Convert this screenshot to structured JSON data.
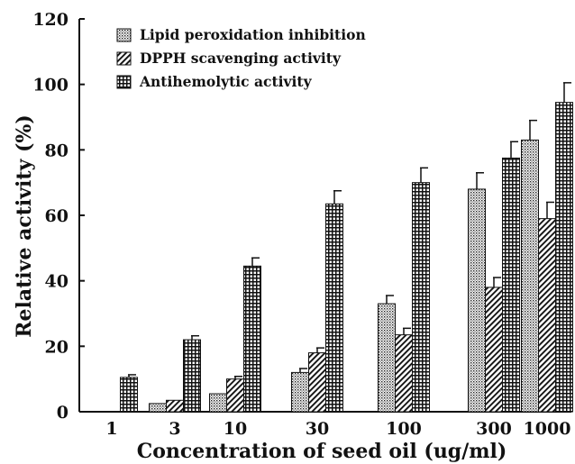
{
  "chart_data": {
    "type": "bar",
    "title": "",
    "xlabel": "Concentration of seed oil (ug/ml)",
    "ylabel": "Relative activity (%)",
    "categories": [
      "1",
      "3",
      "10",
      "30",
      "100",
      "300",
      "1000"
    ],
    "ylim": [
      0,
      120
    ],
    "yticks": [
      "0",
      "20",
      "40",
      "60",
      "80",
      "100",
      "120"
    ],
    "grid": false,
    "legend_position": "top-left",
    "series": [
      {
        "name": "Lipid peroxidation inhibition",
        "pattern": "dotted",
        "values": [
          0,
          2.5,
          5.5,
          12,
          33,
          68,
          83
        ],
        "errors": [
          0,
          0,
          0,
          1.2,
          2.5,
          5,
          6
        ]
      },
      {
        "name": "DPPH scavenging activity",
        "pattern": "diagonal-hatch",
        "values": [
          0,
          3.5,
          10,
          18,
          23.5,
          38,
          59
        ],
        "errors": [
          0,
          0,
          0.8,
          1.5,
          2,
          3,
          5
        ]
      },
      {
        "name": "Antihemolytic activity",
        "pattern": "cross-grid",
        "values": [
          10.5,
          22,
          44.5,
          63.5,
          70,
          77.5,
          94.5
        ],
        "errors": [
          0.8,
          1.2,
          2.5,
          4,
          4.5,
          5,
          6
        ]
      }
    ]
  }
}
